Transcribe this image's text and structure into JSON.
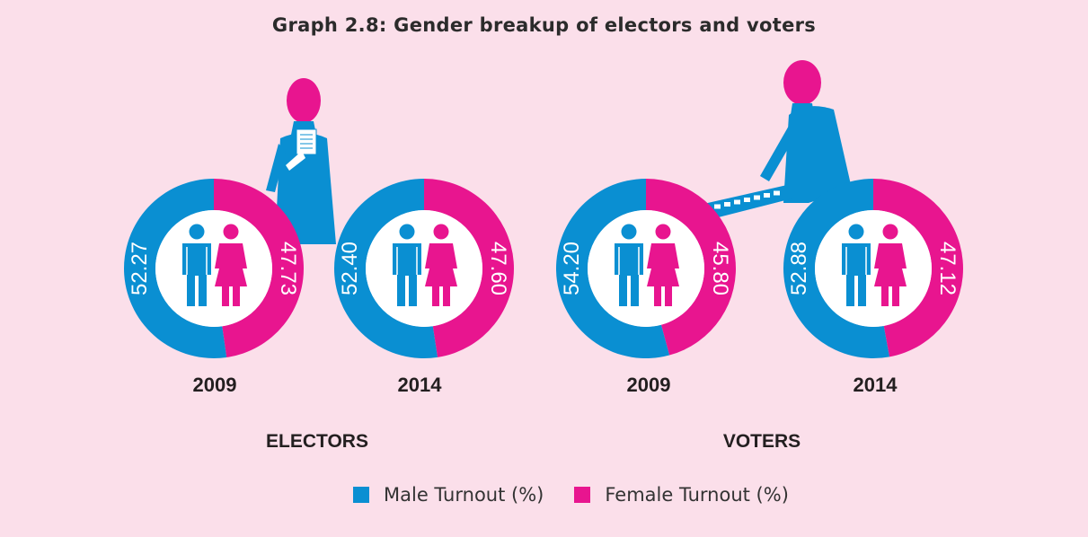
{
  "title": "Graph 2.8: Gender breakup of electors and voters",
  "colors": {
    "male": "#0a8fd2",
    "female": "#e8158f",
    "background": "#fbdfea",
    "person_head": "#e8158f"
  },
  "chart_data": [
    {
      "type": "pie",
      "group": "ELECTORS",
      "year": "2009",
      "series": [
        {
          "name": "Male Turnout (%)",
          "value": 52.27,
          "label": "52.27"
        },
        {
          "name": "Female Turnout (%)",
          "value": 47.73,
          "label": "47.73"
        }
      ]
    },
    {
      "type": "pie",
      "group": "ELECTORS",
      "year": "2014",
      "series": [
        {
          "name": "Male Turnout (%)",
          "value": 52.4,
          "label": "52.40"
        },
        {
          "name": "Female Turnout (%)",
          "value": 47.6,
          "label": "47.60"
        }
      ]
    },
    {
      "type": "pie",
      "group": "VOTERS",
      "year": "2009",
      "series": [
        {
          "name": "Male Turnout (%)",
          "value": 54.2,
          "label": "54.20"
        },
        {
          "name": "Female Turnout (%)",
          "value": 45.8,
          "label": "45.80"
        }
      ]
    },
    {
      "type": "pie",
      "group": "VOTERS",
      "year": "2014",
      "series": [
        {
          "name": "Male Turnout (%)",
          "value": 52.88,
          "label": "52.88"
        },
        {
          "name": "Female Turnout (%)",
          "value": 47.12,
          "label": "47.12"
        }
      ]
    }
  ],
  "groups": {
    "electors": "ELECTORS",
    "voters": "VOTERS"
  },
  "legend": {
    "male": "Male Turnout (%)",
    "female": "Female Turnout (%)"
  }
}
